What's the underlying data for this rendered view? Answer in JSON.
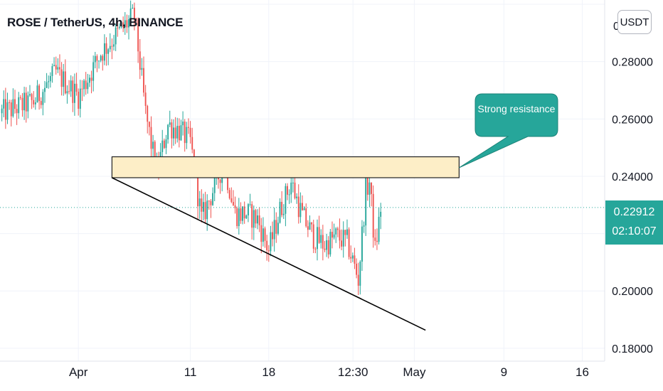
{
  "header": {
    "title": "ROSE / TetherUS, 4h, BINANCE",
    "currency_button": "USDT"
  },
  "price_badge": {
    "price": "0.22912",
    "countdown": "02:10:07"
  },
  "annotation": {
    "text": "Strong resistance"
  },
  "colors": {
    "up": "#26a69a",
    "down": "#ef5350",
    "zone_fill": "#fdeec7",
    "callout": "#26a69a",
    "grid": "#f0f3fa"
  },
  "chart_data": {
    "type": "candlestick",
    "title": "ROSE / TetherUS, 4h, BINANCE",
    "y_axis": {
      "position": "right",
      "ticks": [
        0.18,
        0.2,
        0.24,
        0.26,
        0.28
      ],
      "tick_labels": [
        "0.18000",
        "0.20000",
        "0.24000",
        "0.26000",
        "0.28000"
      ],
      "range": [
        0.1755,
        0.3015
      ]
    },
    "x_axis": {
      "tick_labels": [
        "Apr",
        "11",
        "18",
        "12:30",
        "May",
        "9",
        "16"
      ],
      "range": [
        "2021-03-25",
        "2021-05-18"
      ]
    },
    "grid": true,
    "last_price": 0.22912,
    "resistance_zone": {
      "low": 0.2395,
      "high": 0.2468,
      "from": "2021-04-04",
      "to": "2021-05-05"
    },
    "trendline": {
      "from": {
        "date": "2021-04-04",
        "price": 0.2395
      },
      "to": {
        "date": "2021-05-02",
        "price": 0.1863
      }
    },
    "candles_approx": [
      {
        "date": "2021-03-25",
        "close": 0.262
      },
      {
        "date": "2021-03-28",
        "close": 0.266
      },
      {
        "date": "2021-03-30",
        "close": 0.276
      },
      {
        "date": "2021-04-01",
        "close": 0.268
      },
      {
        "date": "2021-04-03",
        "close": 0.283
      },
      {
        "date": "2021-04-05",
        "close": 0.292
      },
      {
        "date": "2021-04-06",
        "close": 0.296
      },
      {
        "date": "2021-04-07",
        "close": 0.262
      },
      {
        "date": "2021-04-08",
        "close": 0.241
      },
      {
        "date": "2021-04-09",
        "close": 0.258
      },
      {
        "date": "2021-04-10",
        "close": 0.256
      },
      {
        "date": "2021-04-11",
        "close": 0.252
      },
      {
        "date": "2021-04-12",
        "close": 0.225
      },
      {
        "date": "2021-04-13",
        "close": 0.235
      },
      {
        "date": "2021-04-14",
        "close": 0.245
      },
      {
        "date": "2021-04-15",
        "close": 0.227
      },
      {
        "date": "2021-04-16",
        "close": 0.227
      },
      {
        "date": "2021-04-17",
        "close": 0.225
      },
      {
        "date": "2021-04-18",
        "close": 0.214
      },
      {
        "date": "2021-04-19",
        "close": 0.228
      },
      {
        "date": "2021-04-20",
        "close": 0.238
      },
      {
        "date": "2021-04-21",
        "close": 0.226
      },
      {
        "date": "2021-04-22",
        "close": 0.219
      },
      {
        "date": "2021-04-23",
        "close": 0.216
      },
      {
        "date": "2021-04-24",
        "close": 0.219
      },
      {
        "date": "2021-04-25",
        "close": 0.217
      },
      {
        "date": "2021-04-26",
        "close": 0.204
      },
      {
        "date": "2021-04-26T16:00",
        "close": 0.235
      },
      {
        "date": "2021-04-27",
        "close": 0.238
      },
      {
        "date": "2021-04-27T12:00",
        "close": 0.214
      },
      {
        "date": "2021-04-28",
        "close": 0.229
      }
    ]
  }
}
